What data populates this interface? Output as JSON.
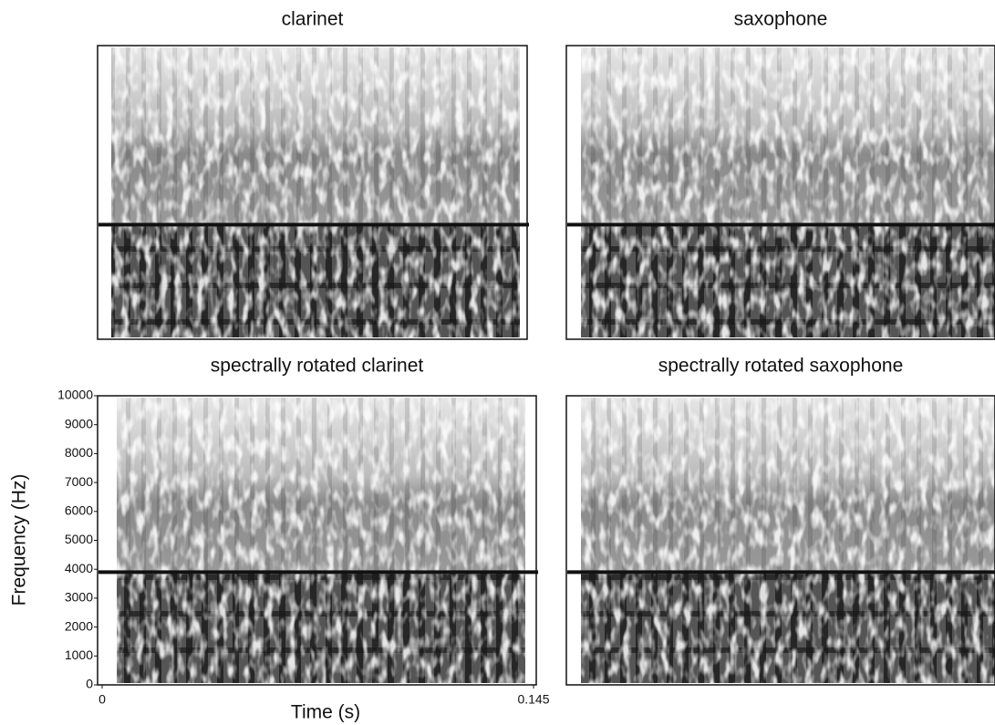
{
  "chart_data": [
    {
      "type": "spectrogram",
      "title": "clarinet",
      "ylim": [
        0,
        10000
      ],
      "hline": 3900
    },
    {
      "type": "spectrogram",
      "title": "saxophone",
      "ylim": [
        0,
        10000
      ],
      "hline": 3900
    },
    {
      "type": "spectrogram",
      "title": "spectrally rotated clarinet",
      "ylim": [
        0,
        10000
      ],
      "hline": 3900,
      "xlim": [
        0,
        0.145
      ],
      "xticks": [
        0,
        0.145
      ],
      "yticks": [
        0,
        1000,
        2000,
        3000,
        4000,
        5000,
        6000,
        7000,
        8000,
        9000,
        10000
      ],
      "xlabel": "Time (s)",
      "ylabel": "Frequency (Hz)"
    },
    {
      "type": "spectrogram",
      "title": "spectrally rotated saxophone",
      "ylim": [
        0,
        10000
      ],
      "hline": 3900
    }
  ]
}
